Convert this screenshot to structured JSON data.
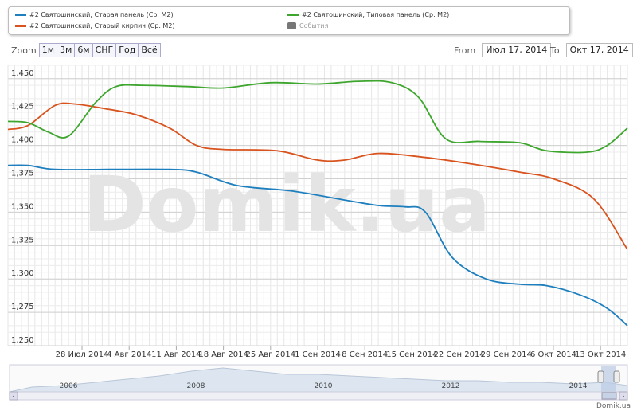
{
  "legend": {
    "items": [
      {
        "label": "#2 Святошинский, Старая панель (Ср. M2)",
        "color": "#1e7fbf",
        "kind": "line"
      },
      {
        "label": "#2 Святошинский, Старый кирпич (Ср. M2)",
        "color": "#d9531e",
        "kind": "line"
      },
      {
        "label": "#2 Святошинский, Типовая панель (Ср. M2)",
        "color": "#3ea62e",
        "kind": "line"
      },
      {
        "label": "События",
        "color": "#777777",
        "kind": "box"
      }
    ]
  },
  "zoom": {
    "label": "Zoom",
    "buttons": [
      "1м",
      "3м",
      "6м",
      "СНГ",
      "Год",
      "Всё"
    ]
  },
  "range": {
    "from_label": "From",
    "from_value": "Июл 17, 2014",
    "to_label": "To",
    "to_value": "Окт 17, 2014"
  },
  "watermark": "Domik.ua",
  "credit": "Domik.ua",
  "navigator": {
    "year_labels": [
      "2006",
      "2008",
      "2010",
      "2012",
      "2014"
    ]
  },
  "chart_data": {
    "type": "line",
    "xlabel": "",
    "ylabel": "",
    "ylim": [
      1.25,
      1.46
    ],
    "xlim": [
      "2014-07-17",
      "2014-10-17"
    ],
    "yticks": [
      1.25,
      1.275,
      1.3,
      1.325,
      1.35,
      1.375,
      1.4,
      1.425,
      1.45
    ],
    "xtick_labels": [
      "28 Июл 2014",
      "4 Авг 2014",
      "11 Авг 2014",
      "18 Авг 2014",
      "25 Авг 2014",
      "1 Сен 2014",
      "8 Сен 2014",
      "15 Сен 2014",
      "22 Сен 2014",
      "29 Сен 2014",
      "6 Окт 2014",
      "13 Окт 2014"
    ],
    "xtick_dates": [
      "2014-07-28",
      "2014-08-04",
      "2014-08-11",
      "2014-08-18",
      "2014-08-25",
      "2014-09-01",
      "2014-09-08",
      "2014-09-15",
      "2014-09-22",
      "2014-09-29",
      "2014-10-06",
      "2014-10-13"
    ],
    "grid": true,
    "series": [
      {
        "name": "#2 Святошинский, Старая панель (Ср. M2)",
        "color": "#1e7fbf",
        "points": [
          [
            "2014-07-17",
            1.385
          ],
          [
            "2014-07-20",
            1.385
          ],
          [
            "2014-07-24",
            1.382
          ],
          [
            "2014-08-01",
            1.382
          ],
          [
            "2014-08-10",
            1.382
          ],
          [
            "2014-08-14",
            1.38
          ],
          [
            "2014-08-20",
            1.37
          ],
          [
            "2014-08-28",
            1.366
          ],
          [
            "2014-09-04",
            1.36
          ],
          [
            "2014-09-10",
            1.355
          ],
          [
            "2014-09-14",
            1.354
          ],
          [
            "2014-09-17",
            1.35
          ],
          [
            "2014-09-21",
            1.316
          ],
          [
            "2014-09-26",
            1.3
          ],
          [
            "2014-10-01",
            1.296
          ],
          [
            "2014-10-05",
            1.295
          ],
          [
            "2014-10-10",
            1.288
          ],
          [
            "2014-10-14",
            1.278
          ],
          [
            "2014-10-17",
            1.265
          ]
        ]
      },
      {
        "name": "#2 Святошинский, Старый кирпич (Ср. M2)",
        "color": "#d9531e",
        "points": [
          [
            "2014-07-17",
            1.412
          ],
          [
            "2014-07-20",
            1.415
          ],
          [
            "2014-07-24",
            1.43
          ],
          [
            "2014-07-27",
            1.431
          ],
          [
            "2014-08-01",
            1.427
          ],
          [
            "2014-08-05",
            1.423
          ],
          [
            "2014-08-10",
            1.413
          ],
          [
            "2014-08-14",
            1.4
          ],
          [
            "2014-08-18",
            1.397
          ],
          [
            "2014-08-26",
            1.396
          ],
          [
            "2014-09-01",
            1.389
          ],
          [
            "2014-09-05",
            1.389
          ],
          [
            "2014-09-10",
            1.394
          ],
          [
            "2014-09-17",
            1.391
          ],
          [
            "2014-09-24",
            1.386
          ],
          [
            "2014-10-01",
            1.38
          ],
          [
            "2014-10-06",
            1.375
          ],
          [
            "2014-10-12",
            1.36
          ],
          [
            "2014-10-17",
            1.322
          ]
        ]
      },
      {
        "name": "#2 Святошинский, Типовая панель (Ср. M2)",
        "color": "#3ea62e",
        "points": [
          [
            "2014-07-17",
            1.418
          ],
          [
            "2014-07-20",
            1.417
          ],
          [
            "2014-07-23",
            1.41
          ],
          [
            "2014-07-26",
            1.407
          ],
          [
            "2014-07-30",
            1.432
          ],
          [
            "2014-08-02",
            1.444
          ],
          [
            "2014-08-06",
            1.445
          ],
          [
            "2014-08-13",
            1.444
          ],
          [
            "2014-08-18",
            1.443
          ],
          [
            "2014-08-25",
            1.447
          ],
          [
            "2014-09-01",
            1.446
          ],
          [
            "2014-09-07",
            1.448
          ],
          [
            "2014-09-12",
            1.447
          ],
          [
            "2014-09-16",
            1.436
          ],
          [
            "2014-09-20",
            1.405
          ],
          [
            "2014-09-25",
            1.403
          ],
          [
            "2014-10-01",
            1.402
          ],
          [
            "2014-10-05",
            1.396
          ],
          [
            "2014-10-11",
            1.395
          ],
          [
            "2014-10-14",
            1.4
          ],
          [
            "2014-10-17",
            1.413
          ]
        ]
      }
    ]
  }
}
